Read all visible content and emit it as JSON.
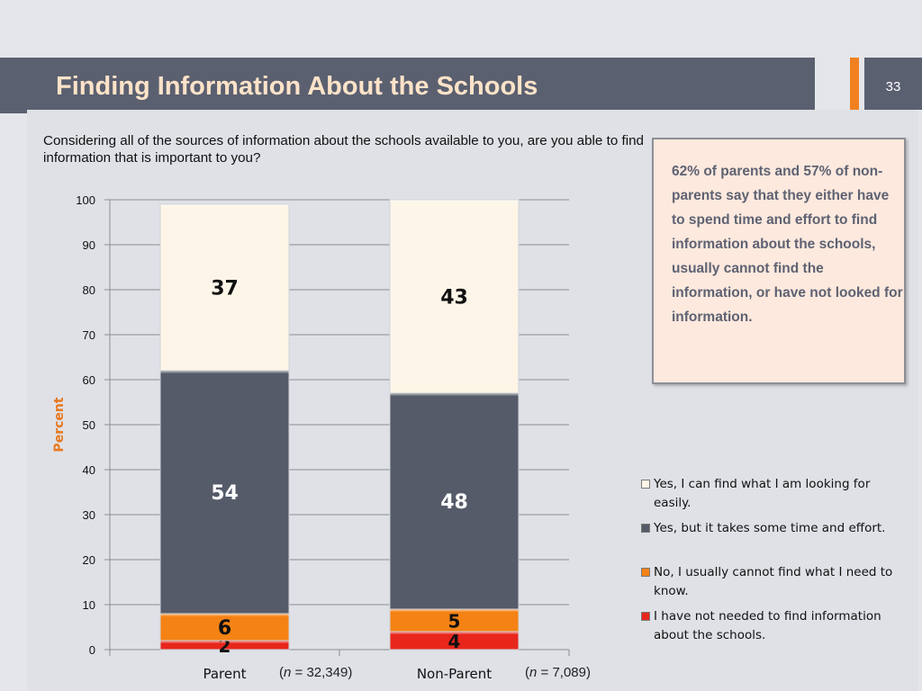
{
  "slide": {
    "title": "Finding Information About the Schools",
    "page_number": "33"
  },
  "question": "Considering all of the sources of information about the schools available to you, are you able to find information that is important to you?",
  "callout": "62%  of parents and 57% of non-parents say that they either have to spend time and effort to find information about the schools, usually cannot find the information, or have not looked for information.",
  "sample_sizes": [
    {
      "prefix": "(",
      "var": "n",
      "rest": " = 32,349)"
    },
    {
      "prefix": "(",
      "var": "n",
      "rest": " = 7,089)"
    }
  ],
  "colors": {
    "yes_easily": "#fdf6e8",
    "yes_effort": "#555b69",
    "no_cannot": "#f58214",
    "not_needed": "#e8261c",
    "accent": "#f08020",
    "title_bg": "#5b6070"
  },
  "chart_data": {
    "type": "bar",
    "stacked": true,
    "categories": [
      "Parent",
      "Non-Parent"
    ],
    "series": [
      {
        "name": "I have not needed to find information about the schools.",
        "values": [
          2,
          4
        ],
        "color": "#e8261c",
        "label_color": "#111111"
      },
      {
        "name": "No, I usually cannot find what I need to know.",
        "values": [
          6,
          5
        ],
        "color": "#f58214",
        "label_color": "#111111"
      },
      {
        "name": "Yes, but it takes some time and effort.",
        "values": [
          54,
          48
        ],
        "color": "#555b69",
        "label_color": "#ffffff"
      },
      {
        "name": "Yes, I can find what I am looking for easily.",
        "values": [
          37,
          43
        ],
        "color": "#fdf6e8",
        "label_color": "#111111"
      }
    ],
    "ylabel": "Percent",
    "ylim": [
      0,
      100
    ],
    "yticks": [
      0,
      10,
      20,
      30,
      40,
      50,
      60,
      70,
      80,
      90,
      100
    ],
    "grid": true,
    "legend_position": "right"
  }
}
